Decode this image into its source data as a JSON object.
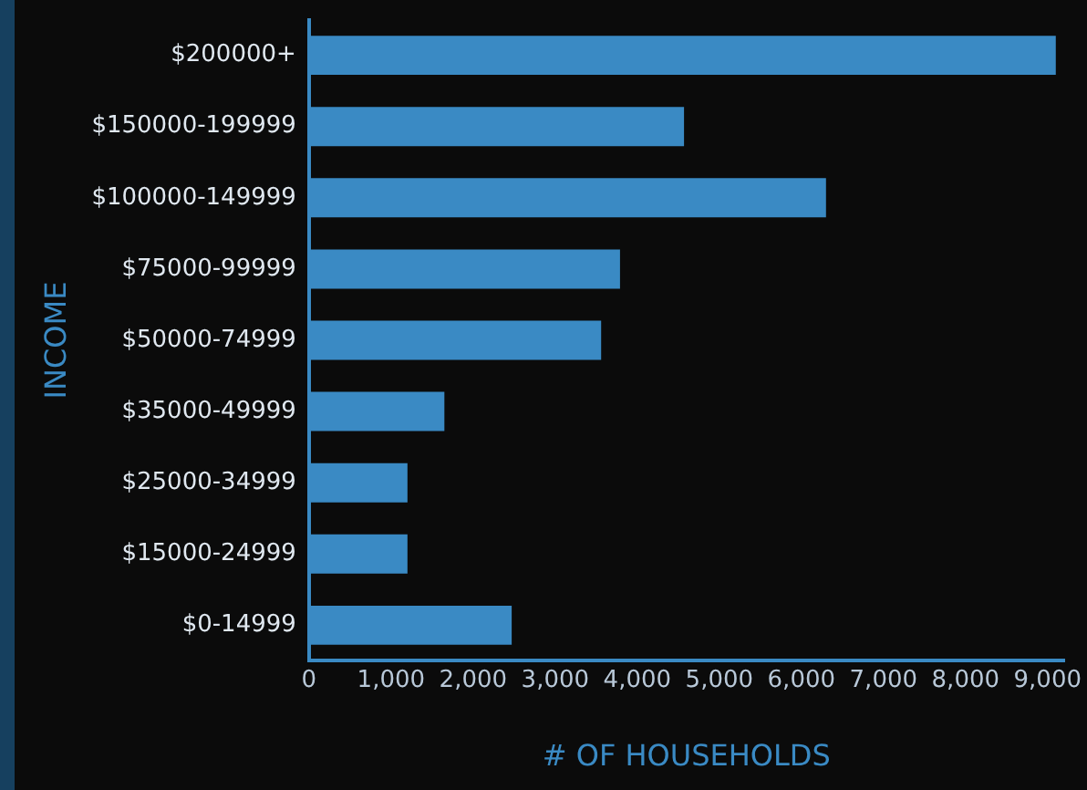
{
  "chart_data": {
    "type": "bar",
    "orientation": "horizontal",
    "xlabel": "# OF HOUSEHOLDS",
    "ylabel": "INCOME",
    "categories": [
      "$200000+",
      "$150000-199999",
      "$100000-149999",
      "$75000-99999",
      "$50000-74999",
      "$35000-49999",
      "$25000-34999",
      "$15000-24999",
      "$0-14999"
    ],
    "values": [
      9100,
      4570,
      6300,
      3790,
      3560,
      1650,
      1200,
      1200,
      2470
    ],
    "color": "#3a8ac4",
    "xlim": [
      0,
      9200
    ],
    "xticks": [
      {
        "value": 0,
        "label": "0"
      },
      {
        "value": 1000,
        "label": "1,000"
      },
      {
        "value": 2000,
        "label": "2,000"
      },
      {
        "value": 3000,
        "label": "3,000"
      },
      {
        "value": 4000,
        "label": "4,000"
      },
      {
        "value": 5000,
        "label": "5,000"
      },
      {
        "value": 6000,
        "label": "6,000"
      },
      {
        "value": 7000,
        "label": "7,000"
      },
      {
        "value": 8000,
        "label": "8,000"
      },
      {
        "value": 9000,
        "label": "9,000"
      }
    ],
    "grid": false,
    "legend": false
  }
}
